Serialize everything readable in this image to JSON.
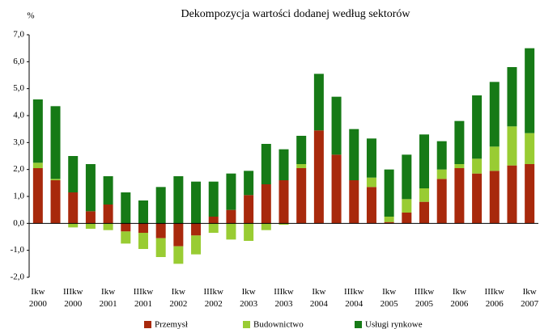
{
  "chart_data": {
    "type": "stacked_bar",
    "title": "Dekompozycja wartości dodanej według sektorów",
    "y_label": "%",
    "categories": [
      "Ikw 2000",
      null,
      "IIIkw 2000",
      null,
      "Ikw 2001",
      null,
      "IIIkw 2001",
      null,
      "Ikw 2002",
      null,
      "IIIkw 2002",
      null,
      "Ikw 2003",
      null,
      "IIIkw 2003",
      null,
      "Ikw 2004",
      null,
      "IIIkw 2004",
      null,
      "Ikw 2005",
      null,
      "IIIkw 2005",
      null,
      "Ikw 2006",
      null,
      "IIIkw 2006",
      null,
      "Ikw 2007"
    ],
    "series": [
      {
        "name": "Przemysł",
        "color": "#a8290c",
        "values": [
          2.05,
          1.6,
          1.15,
          0.45,
          0.7,
          -0.3,
          -0.35,
          -0.55,
          -0.85,
          -0.45,
          0.25,
          0.5,
          1.05,
          1.45,
          1.6,
          2.05,
          3.45,
          2.55,
          1.6,
          1.35,
          0.05,
          0.4,
          0.8,
          1.65,
          2.05,
          1.85,
          1.95,
          2.15,
          2.2
        ]
      },
      {
        "name": "Budownictwo",
        "color": "#99cc33",
        "values": [
          0.2,
          0.05,
          -0.15,
          -0.2,
          -0.25,
          -0.45,
          -0.6,
          -0.7,
          -0.65,
          -0.7,
          -0.35,
          -0.6,
          -0.65,
          -0.25,
          -0.05,
          0.15,
          0.0,
          0.0,
          0.0,
          0.35,
          0.2,
          0.5,
          0.5,
          0.35,
          0.15,
          0.55,
          0.9,
          1.45,
          1.15
        ]
      },
      {
        "name": "Usługi rynkowe",
        "color": "#167a16",
        "values": [
          2.35,
          2.7,
          1.35,
          1.75,
          1.05,
          1.15,
          0.85,
          1.35,
          1.75,
          1.55,
          1.3,
          1.35,
          0.9,
          1.5,
          1.15,
          1.05,
          2.1,
          2.15,
          1.9,
          1.45,
          1.75,
          1.65,
          2.0,
          1.05,
          1.6,
          2.35,
          2.4,
          2.2,
          3.15
        ]
      }
    ],
    "ylim": [
      -2,
      7
    ],
    "yticks": [
      {
        "value": -2,
        "label": "-2,0"
      },
      {
        "value": -1,
        "label": "-1,0"
      },
      {
        "value": 0,
        "label": "0,0"
      },
      {
        "value": 1,
        "label": "1,0"
      },
      {
        "value": 2,
        "label": "2,0"
      },
      {
        "value": 3,
        "label": "3,0"
      },
      {
        "value": 4,
        "label": "4,0"
      },
      {
        "value": 5,
        "label": "5,0"
      },
      {
        "value": 6,
        "label": "6,0"
      },
      {
        "value": 7,
        "label": "7,0"
      }
    ],
    "legend": "bottom"
  }
}
